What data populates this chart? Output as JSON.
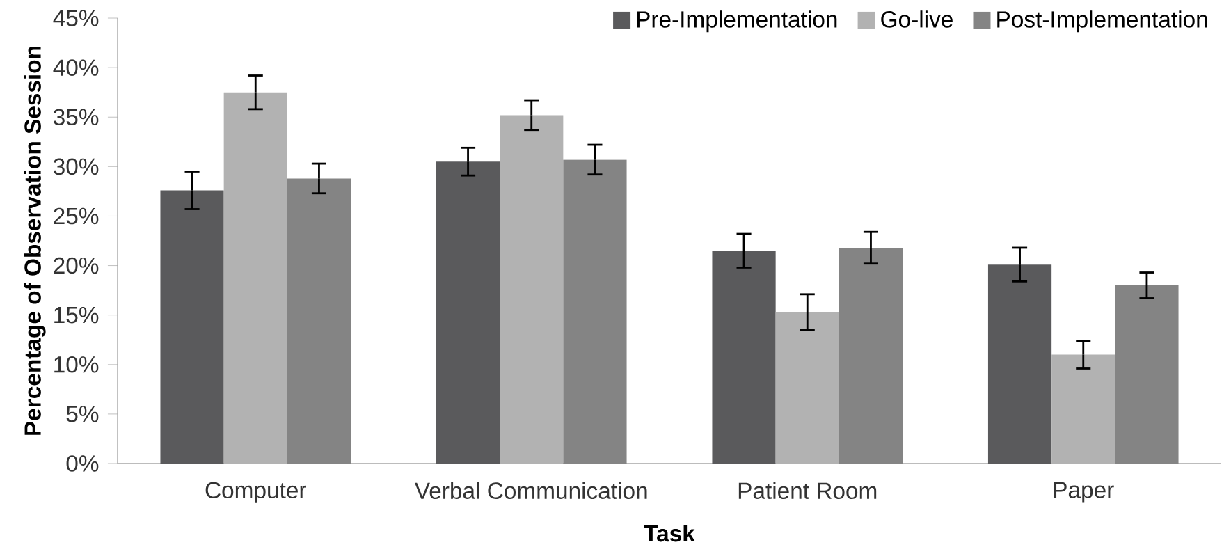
{
  "chart_data": {
    "type": "bar",
    "xlabel": "Task",
    "ylabel": "Percentage of Observation Session",
    "categories": [
      "Computer",
      "Verbal Communication",
      "Patient Room",
      "Paper"
    ],
    "series": [
      {
        "name": "Pre-Implementation",
        "color": "#5a5a5c",
        "values": [
          27.6,
          30.5,
          21.5,
          20.1
        ],
        "errors": [
          1.9,
          1.4,
          1.7,
          1.7
        ]
      },
      {
        "name": "Go-live",
        "color": "#b2b2b2",
        "values": [
          37.5,
          35.2,
          15.3,
          11.0
        ],
        "errors": [
          1.7,
          1.5,
          1.8,
          1.4
        ]
      },
      {
        "name": "Post-Implementation",
        "color": "#848484",
        "values": [
          28.8,
          30.7,
          21.8,
          18.0
        ],
        "errors": [
          1.5,
          1.5,
          1.6,
          1.3
        ]
      }
    ],
    "ylim": [
      0,
      45
    ],
    "yticks": [
      {
        "value": 0,
        "label": "0%"
      },
      {
        "value": 5,
        "label": "5%"
      },
      {
        "value": 10,
        "label": "10%"
      },
      {
        "value": 15,
        "label": "15%"
      },
      {
        "value": 20,
        "label": "20%"
      },
      {
        "value": 25,
        "label": "25%"
      },
      {
        "value": 30,
        "label": "30%"
      },
      {
        "value": 35,
        "label": "35%"
      },
      {
        "value": 40,
        "label": "40%"
      },
      {
        "value": 45,
        "label": "45%"
      }
    ],
    "legend": "top right"
  }
}
